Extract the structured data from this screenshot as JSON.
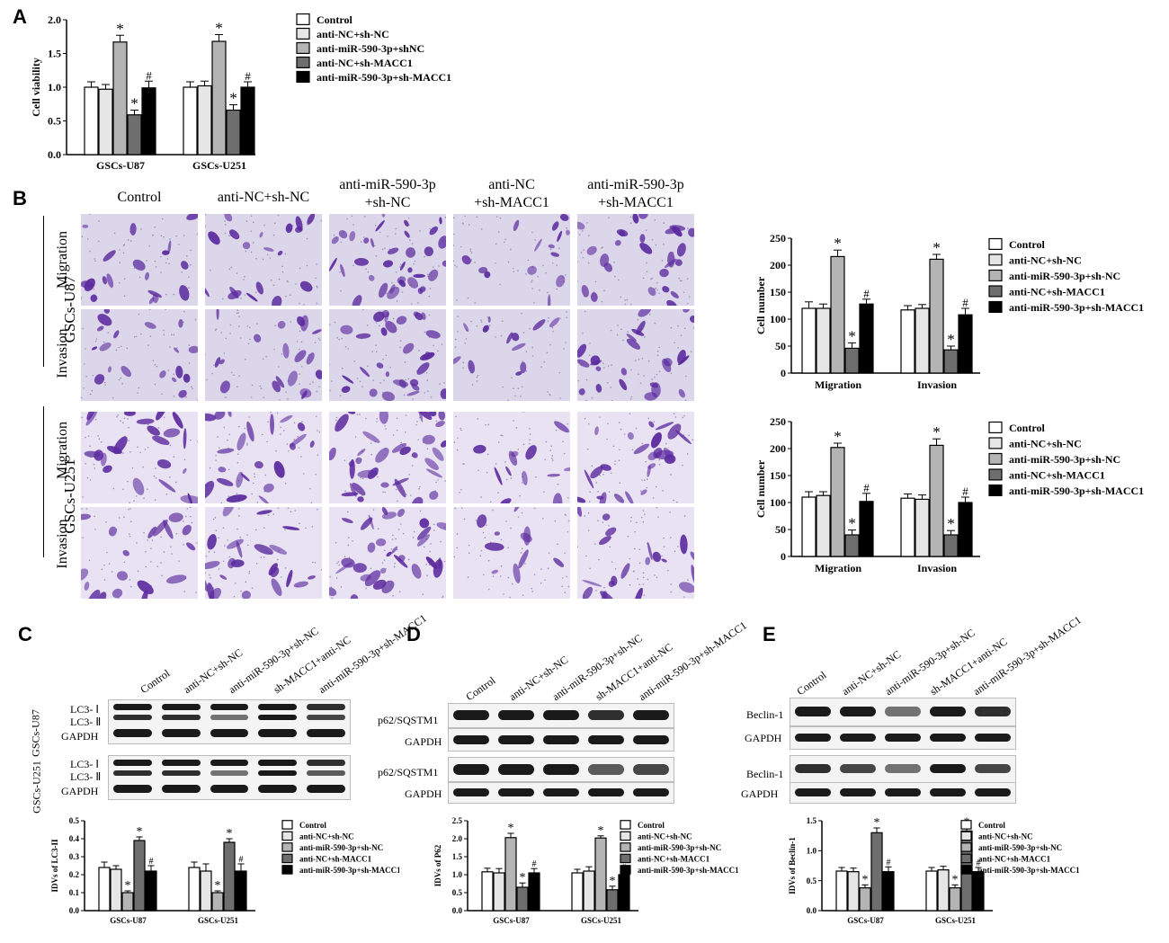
{
  "panel_labels": {
    "A": "A",
    "B": "B",
    "C": "C",
    "D": "D",
    "E": "E"
  },
  "panel_B": {
    "columns": [
      "Control",
      "anti-NC+sh-NC",
      "anti-miR-590-3p\n+sh-NC",
      "anti-NC\n+sh-MACC1",
      "anti-miR-590-3p\n+sh-MACC1"
    ],
    "groups": [
      "GSCs-U87",
      "GSCs-U251"
    ],
    "rows": [
      "Migration",
      "Invasion",
      "Migration",
      "Invasion"
    ]
  },
  "panel_C": {
    "lanes": [
      "Control",
      "anti-NC+sh-NC",
      "anti-miR-590-3p+sh-NC",
      "sh-MACC1+anti-NC",
      "anti-miR-590-3p+sh-MACC1"
    ],
    "groups": [
      "GSCs-U87",
      "GSCs-U251"
    ],
    "bands": [
      "LC3- Ⅰ",
      "LC3- Ⅱ",
      "GAPDH"
    ]
  },
  "panel_D": {
    "lanes": [
      "Control",
      "anti-NC+sh-NC",
      "anti-miR-590-3p+sh-NC",
      "sh-MACC1+anti-NC",
      "anti-miR-590-3p+sh-MACC1"
    ],
    "bands": [
      "p62/SQSTM1",
      "GAPDH"
    ]
  },
  "panel_E": {
    "lanes": [
      "Control",
      "anti-NC+sh-NC",
      "anti-miR-590-3p+sh-NC",
      "sh-MACC1+anti-NC",
      "anti-miR-590-3p+sh-MACC1"
    ],
    "bands": [
      "Beclin-1",
      "GAPDH"
    ]
  },
  "colors": {
    "Control": "#ffffff",
    "anti-NC+sh-NC": "#e6e6e6",
    "anti-miR-590-3p": "#b4b4b4",
    "anti-NC+sh-MACC1": "#6e6e6e",
    "anti-miR-590-3p+sh-MACC1": "#000000",
    "stain": "#5b2a9e"
  },
  "chart_data": [
    {
      "id": "A",
      "type": "bar",
      "ylabel": "Cell viability",
      "ylim": [
        0,
        2.0
      ],
      "yticks": [
        "0.0",
        "0.5",
        "1.0",
        "1.5",
        "2.0"
      ],
      "categories": [
        "GSCs-U87",
        "GSCs-U251"
      ],
      "series": [
        {
          "name": "Control",
          "values": [
            1.0,
            1.0
          ],
          "err": [
            0.08,
            0.08
          ],
          "mark": [
            "",
            ""
          ]
        },
        {
          "name": "anti-NC+sh-NC",
          "values": [
            0.97,
            1.02
          ],
          "err": [
            0.07,
            0.07
          ],
          "mark": [
            "",
            ""
          ]
        },
        {
          "name": "anti-miR-590-3p+shNC",
          "values": [
            1.67,
            1.68
          ],
          "err": [
            0.1,
            0.1
          ],
          "mark": [
            "*",
            "*"
          ]
        },
        {
          "name": "anti-NC+sh-MACC1",
          "values": [
            0.59,
            0.66
          ],
          "err": [
            0.07,
            0.08
          ],
          "mark": [
            "*",
            "*"
          ]
        },
        {
          "name": "anti-miR-590-3p+sh-MACC1",
          "values": [
            0.99,
            1.0
          ],
          "err": [
            0.1,
            0.08
          ],
          "mark": [
            "#",
            "#"
          ]
        }
      ],
      "legend_placement": "right"
    },
    {
      "id": "B1",
      "type": "bar",
      "ylabel": "Cell number",
      "ylim": [
        0,
        250
      ],
      "yticks": [
        "0",
        "50",
        "100",
        "150",
        "200",
        "250"
      ],
      "categories": [
        "Migration",
        "Invasion"
      ],
      "series": [
        {
          "name": "Control",
          "values": [
            120,
            117
          ],
          "err": [
            12,
            8
          ],
          "mark": [
            "",
            ""
          ]
        },
        {
          "name": "anti-NC+sh-NC",
          "values": [
            120,
            120
          ],
          "err": [
            8,
            7
          ],
          "mark": [
            "",
            ""
          ]
        },
        {
          "name": "anti-miR-590-3p+sh-NC",
          "values": [
            216,
            211
          ],
          "err": [
            12,
            9
          ],
          "mark": [
            "*",
            "*"
          ]
        },
        {
          "name": "anti-NC+sh-MACC1",
          "values": [
            46,
            43
          ],
          "err": [
            10,
            7
          ],
          "mark": [
            "*",
            "*"
          ]
        },
        {
          "name": "anti-miR-590-3p+sh-MACC1",
          "values": [
            128,
            108
          ],
          "err": [
            9,
            12
          ],
          "mark": [
            "#",
            "#"
          ]
        }
      ],
      "legend_placement": "right"
    },
    {
      "id": "B2",
      "type": "bar",
      "ylabel": "Cell number",
      "ylim": [
        0,
        250
      ],
      "yticks": [
        "0",
        "50",
        "100",
        "150",
        "200",
        "250"
      ],
      "categories": [
        "Migration",
        "Invasion"
      ],
      "series": [
        {
          "name": "Control",
          "values": [
            110,
            108
          ],
          "err": [
            10,
            8
          ],
          "mark": [
            "",
            ""
          ]
        },
        {
          "name": "anti-NC+sh-NC",
          "values": [
            113,
            106
          ],
          "err": [
            7,
            8
          ],
          "mark": [
            "",
            ""
          ]
        },
        {
          "name": "anti-miR-590-3p+sh-NC",
          "values": [
            202,
            206
          ],
          "err": [
            8,
            12
          ],
          "mark": [
            "*",
            "*"
          ]
        },
        {
          "name": "anti-NC+sh-MACC1",
          "values": [
            40,
            40
          ],
          "err": [
            9,
            8
          ],
          "mark": [
            "*",
            "*"
          ]
        },
        {
          "name": "anti-miR-590-3p+sh-MACC1",
          "values": [
            102,
            100
          ],
          "err": [
            15,
            10
          ],
          "mark": [
            "#",
            "#"
          ]
        }
      ],
      "legend_placement": "right"
    },
    {
      "id": "C",
      "type": "bar",
      "ylabel": "IDVs of LC3-II",
      "ylim": [
        0,
        0.5
      ],
      "yticks": [
        "0.0",
        "0.1",
        "0.2",
        "0.3",
        "0.4",
        "0.5"
      ],
      "categories": [
        "GSCs-U87",
        "GSCs-U251"
      ],
      "series": [
        {
          "name": "Control",
          "values": [
            0.24,
            0.24
          ],
          "err": [
            0.03,
            0.03
          ],
          "mark": [
            "",
            ""
          ]
        },
        {
          "name": "anti-NC+sh-NC",
          "values": [
            0.23,
            0.22
          ],
          "err": [
            0.02,
            0.04
          ],
          "mark": [
            "",
            ""
          ]
        },
        {
          "name": "anti-miR-590-3p+sh-NC",
          "values": [
            0.1,
            0.1
          ],
          "err": [
            0.01,
            0.01
          ],
          "mark": [
            "*",
            "*"
          ]
        },
        {
          "name": "anti-NC+sh-MACC1",
          "values": [
            0.39,
            0.38
          ],
          "err": [
            0.02,
            0.02
          ],
          "mark": [
            "*",
            "*"
          ]
        },
        {
          "name": "anti-miR-590-3p+sh-MACC1",
          "values": [
            0.22,
            0.22
          ],
          "err": [
            0.03,
            0.04
          ],
          "mark": [
            "#",
            "#"
          ]
        }
      ],
      "legend_placement": "right"
    },
    {
      "id": "D",
      "type": "bar",
      "ylabel": "IDVs of P62",
      "ylim": [
        0,
        2.5
      ],
      "yticks": [
        "0.0",
        "0.5",
        "1.0",
        "1.5",
        "2.0",
        "2.5"
      ],
      "categories": [
        "GSCs-U87",
        "GSCs-U251"
      ],
      "series": [
        {
          "name": "Control",
          "values": [
            1.08,
            1.05
          ],
          "err": [
            0.1,
            0.1
          ],
          "mark": [
            "",
            ""
          ]
        },
        {
          "name": "anti-NC+sh-NC",
          "values": [
            1.05,
            1.1
          ],
          "err": [
            0.12,
            0.12
          ],
          "mark": [
            "",
            ""
          ]
        },
        {
          "name": "anti-miR-590-3p+sh-NC",
          "values": [
            2.03,
            2.02
          ],
          "err": [
            0.12,
            0.06
          ],
          "mark": [
            "*",
            "*"
          ]
        },
        {
          "name": "anti-NC+sh-MACC1",
          "values": [
            0.65,
            0.58
          ],
          "err": [
            0.12,
            0.1
          ],
          "mark": [
            "*",
            "*"
          ]
        },
        {
          "name": "anti-miR-590-3p+sh-MACC1",
          "values": [
            1.05,
            1.0
          ],
          "err": [
            0.12,
            0.08
          ],
          "mark": [
            "#",
            "#"
          ]
        }
      ],
      "legend_placement": "right"
    },
    {
      "id": "E",
      "type": "bar",
      "ylabel": "IDVs of Beclin-1",
      "ylim": [
        0,
        1.5
      ],
      "yticks": [
        "0.0",
        "0.5",
        "1.0",
        "1.5"
      ],
      "categories": [
        "GSCs-U87",
        "GSCs-U251"
      ],
      "series": [
        {
          "name": "Control",
          "values": [
            0.66,
            0.66
          ],
          "err": [
            0.06,
            0.06
          ],
          "mark": [
            "",
            ""
          ]
        },
        {
          "name": "anti-NC+sh-NC",
          "values": [
            0.65,
            0.68
          ],
          "err": [
            0.06,
            0.06
          ],
          "mark": [
            "",
            ""
          ]
        },
        {
          "name": "anti-miR-590-3p+sh-NC",
          "values": [
            0.38,
            0.38
          ],
          "err": [
            0.05,
            0.05
          ],
          "mark": [
            "*",
            "*"
          ]
        },
        {
          "name": "anti-NC+sh-MACC1",
          "values": [
            1.3,
            1.33
          ],
          "err": [
            0.08,
            0.06
          ],
          "mark": [
            "*",
            "*"
          ]
        },
        {
          "name": "anti-miR-590-3p+sh-MACC1",
          "values": [
            0.65,
            0.65
          ],
          "err": [
            0.08,
            0.07
          ],
          "mark": [
            "#",
            "#"
          ]
        }
      ],
      "legend_placement": "right"
    }
  ]
}
